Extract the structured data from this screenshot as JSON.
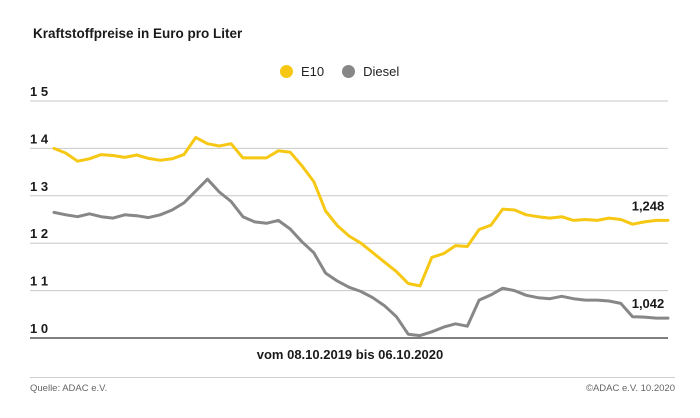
{
  "chart_data": {
    "type": "line",
    "title": "Kraftstoffpreise in Euro pro Liter",
    "subtitle": "vom 08.10.2019 bis 06.10.2020",
    "y_ticks": [
      "1 5",
      "1 4",
      "1 3",
      "1 2",
      "1 1",
      "1 0"
    ],
    "ylim": [
      1.0,
      1.5
    ],
    "grid": true,
    "legend_position": "top-center",
    "series": [
      {
        "name": "E10",
        "color": "#f6c814",
        "end_label": "1,248",
        "values": [
          1.4,
          1.39,
          1.373,
          1.378,
          1.387,
          1.385,
          1.381,
          1.386,
          1.379,
          1.375,
          1.378,
          1.387,
          1.423,
          1.41,
          1.405,
          1.41,
          1.38,
          1.38,
          1.38,
          1.395,
          1.392,
          1.363,
          1.33,
          1.268,
          1.237,
          1.215,
          1.2,
          1.18,
          1.16,
          1.14,
          1.115,
          1.11,
          1.17,
          1.178,
          1.195,
          1.193,
          1.229,
          1.238,
          1.272,
          1.27,
          1.26,
          1.256,
          1.253,
          1.256,
          1.248,
          1.25,
          1.248,
          1.253,
          1.25,
          1.24,
          1.245,
          1.248,
          1.248
        ]
      },
      {
        "name": "Diesel",
        "color": "#878787",
        "end_label": "1,042",
        "values": [
          1.265,
          1.26,
          1.256,
          1.262,
          1.256,
          1.253,
          1.26,
          1.258,
          1.254,
          1.26,
          1.27,
          1.285,
          1.31,
          1.335,
          1.308,
          1.288,
          1.256,
          1.245,
          1.242,
          1.248,
          1.23,
          1.203,
          1.18,
          1.137,
          1.12,
          1.107,
          1.098,
          1.085,
          1.068,
          1.045,
          1.008,
          1.005,
          1.013,
          1.023,
          1.03,
          1.025,
          1.08,
          1.091,
          1.105,
          1.1,
          1.09,
          1.085,
          1.083,
          1.088,
          1.083,
          1.08,
          1.08,
          1.078,
          1.073,
          1.045,
          1.044,
          1.042,
          1.042
        ]
      }
    ]
  },
  "footer": {
    "source": "Quelle: ADAC e.V.",
    "copyright": "©ADAC e.V. 10.2020"
  }
}
